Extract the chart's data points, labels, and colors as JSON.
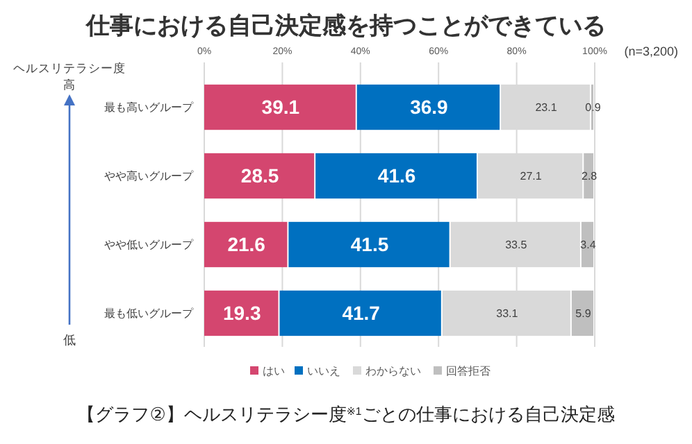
{
  "chart_data": {
    "type": "bar",
    "orientation": "horizontal",
    "stacked": true,
    "title": "仕事における自己決定感を持つことができている",
    "categories": [
      "最も高いグループ",
      "やや高いグループ",
      "やや低いグループ",
      "最も低いグループ"
    ],
    "series": [
      {
        "name": "はい",
        "color": "#d4466f",
        "values": [
          39.1,
          28.5,
          21.6,
          19.3
        ]
      },
      {
        "name": "いいえ",
        "color": "#0070c0",
        "values": [
          36.9,
          41.6,
          41.5,
          41.7
        ]
      },
      {
        "name": "わからない",
        "color": "#d9d9d9",
        "values": [
          23.1,
          27.1,
          33.5,
          33.1
        ]
      },
      {
        "name": "回答拒否",
        "color": "#bfbfbf",
        "values": [
          0.9,
          2.8,
          3.4,
          5.9
        ]
      }
    ],
    "xlim": [
      0,
      100
    ],
    "xticks": [
      {
        "value": 0,
        "label": "0%"
      },
      {
        "value": 20,
        "label": "20%"
      },
      {
        "value": 40,
        "label": "40%"
      },
      {
        "value": 60,
        "label": "60%"
      },
      {
        "value": 80,
        "label": "80%"
      },
      {
        "value": 100,
        "label": "100%"
      }
    ],
    "grid": "x",
    "legend": "bottom",
    "data_labels": true,
    "annotations": [
      "(n=3,200)",
      "ヘルスリテラシー度",
      "高",
      "低",
      "【グラフ②】ヘルスリテラシー度$^{※1}$ごとの仕事における自己決定感"
    ]
  }
}
